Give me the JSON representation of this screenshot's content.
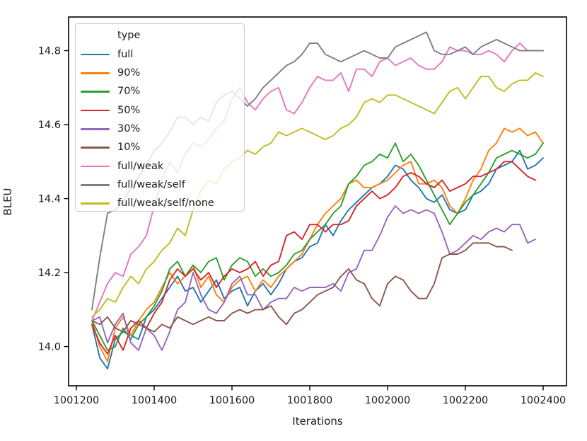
{
  "chart_data": {
    "type": "line",
    "title": "",
    "xlabel": "Iterations",
    "ylabel": "BLEU",
    "xlim": [
      1001180,
      1002460
    ],
    "ylim": [
      13.894,
      14.891
    ],
    "xticks": [
      1001200,
      1001400,
      1001600,
      1001800,
      1002000,
      1002200,
      1002400
    ],
    "xtick_labels": [
      "1001200",
      "1001400",
      "1001600",
      "1001800",
      "1002000",
      "1002200",
      "1002400"
    ],
    "yticks": [
      14.0,
      14.2,
      14.4,
      14.6,
      14.8
    ],
    "ytick_labels": [
      "14.0",
      "14.2",
      "14.4",
      "14.6",
      "14.8"
    ],
    "grid": false,
    "legend": {
      "title": "type",
      "position": "upper-left"
    },
    "x_start": 1001240,
    "x_step": 20,
    "series": [
      {
        "name": "full",
        "color": "#1f77b4",
        "values": [
          14.06,
          13.97,
          13.94,
          14.02,
          14.04,
          14.03,
          14.02,
          14.08,
          14.1,
          14.13,
          14.16,
          14.19,
          14.15,
          14.16,
          14.12,
          14.15,
          14.18,
          14.13,
          14.15,
          14.16,
          14.11,
          14.15,
          14.17,
          14.14,
          14.17,
          14.21,
          14.23,
          14.24,
          14.27,
          14.28,
          14.33,
          14.3,
          14.34,
          14.37,
          14.39,
          14.41,
          14.43,
          14.44,
          14.46,
          14.49,
          14.48,
          14.45,
          14.43,
          14.4,
          14.39,
          14.41,
          14.37,
          14.36,
          14.37,
          14.41,
          14.42,
          14.44,
          14.48,
          14.49,
          14.5,
          14.53,
          14.48,
          14.49,
          14.51
        ]
      },
      {
        "name": "90%",
        "color": "#ff7f0e",
        "values": [
          14.07,
          14.0,
          13.96,
          14.05,
          14.08,
          14.03,
          14.07,
          14.1,
          14.12,
          14.16,
          14.2,
          14.17,
          14.19,
          14.22,
          14.16,
          14.19,
          14.14,
          14.12,
          14.16,
          14.18,
          14.19,
          14.15,
          14.18,
          14.16,
          14.19,
          14.21,
          14.23,
          14.25,
          14.29,
          14.33,
          14.36,
          14.38,
          14.4,
          14.44,
          14.45,
          14.43,
          14.43,
          14.44,
          14.45,
          14.47,
          14.49,
          14.5,
          14.44,
          14.44,
          14.45,
          14.43,
          14.38,
          14.36,
          14.4,
          14.45,
          14.48,
          14.53,
          14.55,
          14.59,
          14.58,
          14.59,
          14.57,
          14.58,
          14.55
        ]
      },
      {
        "name": "70%",
        "color": "#2ca02c",
        "values": [
          14.07,
          14.03,
          13.99,
          14.0,
          14.05,
          14.02,
          14.06,
          14.08,
          14.11,
          14.15,
          14.21,
          14.23,
          14.19,
          14.22,
          14.2,
          14.23,
          14.24,
          14.18,
          14.22,
          14.24,
          14.23,
          14.19,
          14.21,
          14.19,
          14.2,
          14.22,
          14.25,
          14.26,
          14.29,
          14.31,
          14.33,
          14.36,
          14.38,
          14.44,
          14.46,
          14.49,
          14.5,
          14.52,
          14.51,
          14.55,
          14.5,
          14.52,
          14.49,
          14.45,
          14.41,
          14.37,
          14.33,
          14.36,
          14.39,
          14.41,
          14.44,
          14.47,
          14.51,
          14.52,
          14.53,
          14.52,
          14.51,
          14.52,
          14.55
        ]
      },
      {
        "name": "50%",
        "color": "#d62728",
        "values": [
          14.06,
          14.01,
          13.98,
          14.03,
          13.99,
          14.05,
          14.07,
          14.05,
          14.09,
          14.12,
          14.18,
          14.21,
          14.19,
          14.21,
          14.18,
          14.2,
          14.16,
          14.19,
          14.21,
          14.2,
          14.21,
          14.23,
          14.19,
          14.22,
          14.23,
          14.3,
          14.31,
          14.29,
          14.33,
          14.33,
          14.31,
          14.33,
          14.33,
          14.34,
          14.38,
          14.4,
          14.42,
          14.4,
          14.41,
          14.43,
          14.46,
          14.47,
          14.46,
          14.44,
          14.43,
          14.45,
          14.42,
          14.43,
          14.44,
          14.46,
          14.46,
          14.47,
          14.48,
          14.5,
          14.5,
          14.48,
          14.46,
          14.45
        ]
      },
      {
        "name": "30%",
        "color": "#9467bd",
        "values": [
          14.07,
          14.08,
          14.01,
          14.06,
          14.09,
          14.01,
          13.99,
          14.05,
          14.03,
          13.99,
          14.04,
          14.1,
          14.12,
          14.2,
          14.14,
          14.1,
          14.09,
          14.12,
          14.17,
          14.19,
          14.14,
          14.14,
          14.1,
          14.12,
          14.13,
          14.13,
          14.16,
          14.15,
          14.16,
          14.16,
          14.16,
          14.17,
          14.15,
          14.2,
          14.21,
          14.26,
          14.26,
          14.3,
          14.35,
          14.38,
          14.36,
          14.37,
          14.36,
          14.37,
          14.36,
          14.31,
          14.25,
          14.26,
          14.28,
          14.3,
          14.29,
          14.31,
          14.32,
          14.31,
          14.33,
          14.33,
          14.28,
          14.29
        ]
      },
      {
        "name": "10%",
        "color": "#8c564b",
        "values": [
          14.07,
          14.06,
          14.08,
          14.05,
          14.04,
          14.07,
          14.06,
          14.05,
          14.04,
          14.06,
          14.05,
          14.08,
          14.07,
          14.06,
          14.07,
          14.08,
          14.07,
          14.07,
          14.09,
          14.1,
          14.09,
          14.1,
          14.1,
          14.11,
          14.08,
          14.06,
          14.09,
          14.1,
          14.12,
          14.14,
          14.15,
          14.16,
          14.19,
          14.21,
          14.18,
          14.17,
          14.13,
          14.11,
          14.17,
          14.19,
          14.18,
          14.15,
          14.13,
          14.13,
          14.17,
          14.24,
          14.25,
          14.25,
          14.26,
          14.28,
          14.28,
          14.28,
          14.27,
          14.27,
          14.26
        ]
      },
      {
        "name": "full/weak",
        "color": "#e377c2",
        "values": [
          14.07,
          14.12,
          14.17,
          14.2,
          14.19,
          14.25,
          14.27,
          14.3,
          14.38,
          14.45,
          14.5,
          14.47,
          14.52,
          14.55,
          14.54,
          14.56,
          14.59,
          14.61,
          14.67,
          14.7,
          14.66,
          14.64,
          14.67,
          14.69,
          14.7,
          14.64,
          14.63,
          14.66,
          14.7,
          14.73,
          14.72,
          14.72,
          14.74,
          14.69,
          14.75,
          14.75,
          14.73,
          14.77,
          14.78,
          14.76,
          14.77,
          14.78,
          14.76,
          14.75,
          14.75,
          14.77,
          14.81,
          14.8,
          14.8,
          14.79,
          14.79,
          14.8,
          14.79,
          14.77,
          14.8,
          14.82,
          14.8,
          14.8,
          14.8
        ]
      },
      {
        "name": "full/weak/self",
        "color": "#7f7f7f",
        "values": [
          14.1,
          14.24,
          14.36,
          14.37,
          14.39,
          14.43,
          14.46,
          14.49,
          14.53,
          14.55,
          14.58,
          14.62,
          14.62,
          14.6,
          14.62,
          14.61,
          14.66,
          14.68,
          14.69,
          14.67,
          14.65,
          14.67,
          14.7,
          14.72,
          14.74,
          14.76,
          14.77,
          14.79,
          14.82,
          14.82,
          14.79,
          14.78,
          14.77,
          14.78,
          14.79,
          14.8,
          14.79,
          14.78,
          14.78,
          14.81,
          14.82,
          14.83,
          14.84,
          14.85,
          14.8,
          14.79,
          14.79,
          14.8,
          14.81,
          14.79,
          14.81,
          14.82,
          14.83,
          14.82,
          14.81,
          14.8,
          14.8,
          14.8,
          14.8
        ]
      },
      {
        "name": "full/weak/self/none",
        "color": "#bcbd22",
        "values": [
          14.08,
          14.1,
          14.13,
          14.12,
          14.16,
          14.19,
          14.17,
          14.21,
          14.23,
          14.26,
          14.28,
          14.32,
          14.3,
          14.37,
          14.42,
          14.45,
          14.44,
          14.48,
          14.5,
          14.51,
          14.53,
          14.52,
          14.54,
          14.55,
          14.58,
          14.57,
          14.58,
          14.59,
          14.58,
          14.57,
          14.56,
          14.57,
          14.59,
          14.6,
          14.62,
          14.66,
          14.67,
          14.66,
          14.68,
          14.68,
          14.67,
          14.66,
          14.65,
          14.64,
          14.63,
          14.66,
          14.69,
          14.7,
          14.67,
          14.7,
          14.73,
          14.73,
          14.7,
          14.69,
          14.71,
          14.72,
          14.72,
          14.74,
          14.73
        ]
      }
    ]
  }
}
